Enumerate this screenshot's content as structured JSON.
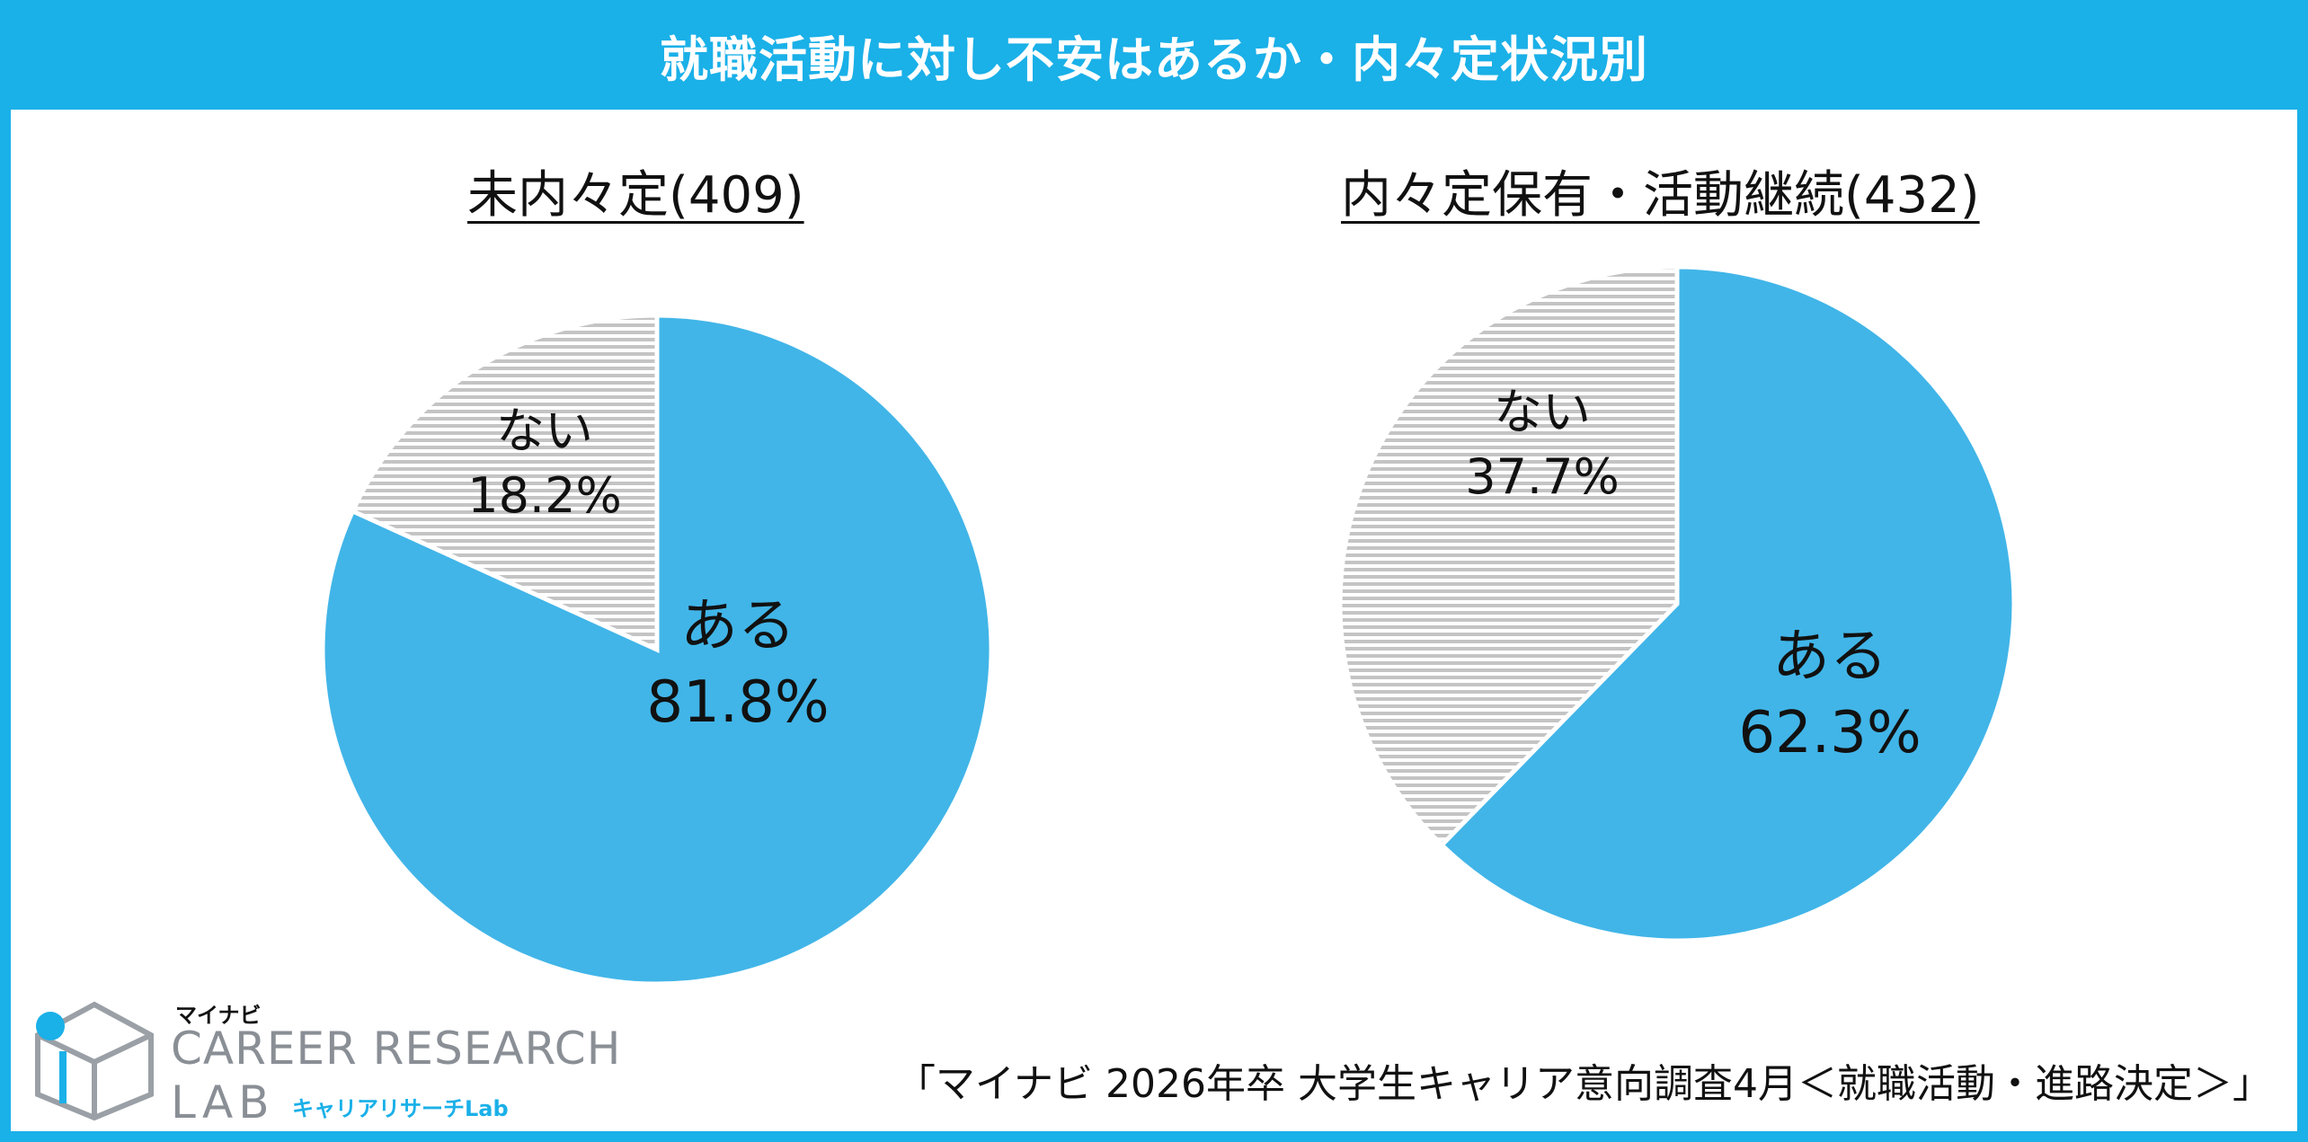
{
  "header": {
    "title": "就職活動に対し不安はあるか・内々定状況別"
  },
  "colors": {
    "accent": "#1ab0e8",
    "aru": "#41b5e8",
    "nai_stripe": "#c4c4c4"
  },
  "chart_data": [
    {
      "type": "pie",
      "title": "未内々定(409)",
      "slices": [
        {
          "label": "ある",
          "value": 81.8,
          "value_label": "81.8%",
          "color": "#41b5e8",
          "pattern": "solid"
        },
        {
          "label": "ない",
          "value": 18.2,
          "value_label": "18.2%",
          "color": "#c4c4c4",
          "pattern": "horizontal-stripes"
        }
      ]
    },
    {
      "type": "pie",
      "title": "内々定保有・活動継続(432)",
      "slices": [
        {
          "label": "ある",
          "value": 62.3,
          "value_label": "62.3%",
          "color": "#41b5e8",
          "pattern": "solid"
        },
        {
          "label": "ない",
          "value": 37.7,
          "value_label": "37.7%",
          "color": "#c4c4c4",
          "pattern": "horizontal-stripes"
        }
      ]
    }
  ],
  "source": "「マイナビ 2026年卒 大学生キャリア意向調査4月＜就職活動・進路決定＞」",
  "logo": {
    "brand": "マイナビ",
    "line1": "CAREER RESEARCH",
    "line2": "LAB",
    "sub": "キャリアリサーチLab"
  }
}
